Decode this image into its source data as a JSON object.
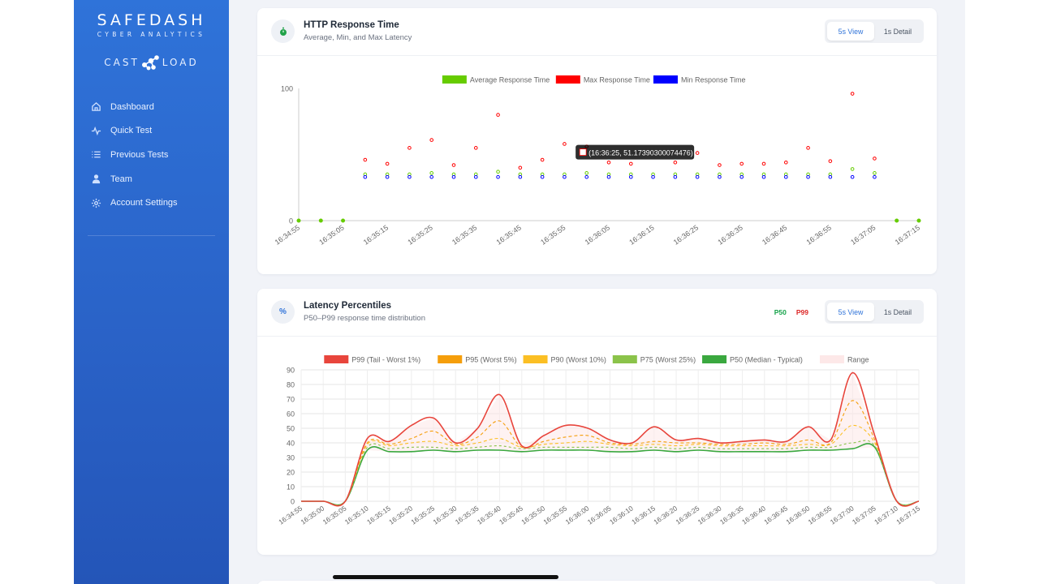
{
  "brand": {
    "name": "SAFEDASH",
    "tagline": "CYBER ANALYTICS",
    "partner_left": "CAST",
    "partner_right": "LOAD"
  },
  "nav": [
    {
      "label": "Dashboard",
      "icon": "home-icon"
    },
    {
      "label": "Quick Test",
      "icon": "activity-icon"
    },
    {
      "label": "Previous Tests",
      "icon": "list-icon"
    },
    {
      "label": "Team",
      "icon": "user-icon"
    },
    {
      "label": "Account Settings",
      "icon": "gear-icon"
    }
  ],
  "colors": {
    "accent": "#2f73d9",
    "avg": "#66cc00",
    "max": "#ff0000",
    "min": "#0000ff"
  },
  "response_card": {
    "title": "HTTP Response Time",
    "subtitle": "Average, Min, and Max Latency",
    "icon": "stopwatch-icon",
    "toggle": [
      "5s View",
      "1s Detail"
    ],
    "active_toggle": "5s View"
  },
  "percentile_card": {
    "title": "Latency Percentiles",
    "subtitle": "P50–P99 response time distribution",
    "icon": "percent-icon",
    "badges": [
      {
        "label": "P50",
        "color": "#16a34a"
      },
      {
        "label": "P99",
        "color": "#dc2626"
      }
    ],
    "toggle": [
      "5s View",
      "1s Detail"
    ],
    "active_toggle": "5s View"
  },
  "chart_data": [
    {
      "type": "scatter",
      "ylim": [
        0,
        100
      ],
      "ytick_labels": [
        "0",
        "100"
      ],
      "grid": false,
      "legend_position": "top-center",
      "x_tick_labels": [
        "16:34:55",
        "16:35:05",
        "16:35:15",
        "16:35:25",
        "16:35:35",
        "16:35:45",
        "16:35:55",
        "16:36:05",
        "16:36:15",
        "16:36:25",
        "16:36:35",
        "16:36:45",
        "16:36:55",
        "16:37:05",
        "16:37:15"
      ],
      "x": [
        "16:34:55",
        "16:35:00",
        "16:35:05",
        "16:35:10",
        "16:35:15",
        "16:35:20",
        "16:35:25",
        "16:35:30",
        "16:35:35",
        "16:35:40",
        "16:35:45",
        "16:35:50",
        "16:35:55",
        "16:36:00",
        "16:36:05",
        "16:36:10",
        "16:36:15",
        "16:36:20",
        "16:36:25",
        "16:36:30",
        "16:36:35",
        "16:36:40",
        "16:36:45",
        "16:36:50",
        "16:36:55",
        "16:37:00",
        "16:37:05",
        "16:37:10",
        "16:37:15"
      ],
      "series": [
        {
          "name": "Average Response Time",
          "color": "#66cc00",
          "values": [
            0,
            0,
            0,
            35,
            35,
            35,
            36,
            35,
            35,
            37,
            35,
            35,
            35,
            36,
            35,
            35,
            35,
            35,
            35,
            35,
            35,
            35,
            35,
            35,
            35,
            39,
            36,
            0,
            0
          ]
        },
        {
          "name": "Max Response Time",
          "color": "#ff0000",
          "values": [
            null,
            null,
            null,
            46,
            43,
            55,
            61,
            42,
            55,
            80,
            40,
            46,
            58,
            56,
            44,
            43,
            null,
            44,
            51.17,
            42,
            43,
            43,
            44,
            55,
            45,
            96,
            47,
            null,
            null
          ]
        },
        {
          "name": "Min Response Time",
          "color": "#0000ff",
          "values": [
            null,
            null,
            null,
            33,
            33,
            33,
            33,
            33,
            33,
            33,
            33,
            33,
            33,
            33,
            33,
            33,
            33,
            33,
            33,
            33,
            33,
            33,
            33,
            33,
            33,
            33,
            33,
            null,
            null
          ]
        }
      ],
      "tooltip": {
        "text": "(16:36:25, 51.17390300074476)"
      }
    },
    {
      "type": "line",
      "ylim": [
        0,
        90
      ],
      "ytick_labels": [
        "0",
        "10",
        "20",
        "30",
        "40",
        "50",
        "60",
        "70",
        "80",
        "90"
      ],
      "grid": true,
      "legend_position": "top-center",
      "x": [
        "16:34:55",
        "16:35:00",
        "16:35:05",
        "16:35:10",
        "16:35:15",
        "16:35:20",
        "16:35:25",
        "16:35:30",
        "16:35:35",
        "16:35:40",
        "16:35:45",
        "16:35:50",
        "16:35:55",
        "16:36:00",
        "16:36:05",
        "16:36:10",
        "16:36:15",
        "16:36:20",
        "16:36:25",
        "16:36:30",
        "16:36:35",
        "16:36:40",
        "16:36:45",
        "16:36:50",
        "16:36:55",
        "16:37:00",
        "16:37:05",
        "16:37:10",
        "16:37:15"
      ],
      "series": [
        {
          "name": "P99 (Tail - Worst 1%)",
          "color": "#e8453c",
          "values": [
            0,
            0,
            0,
            43,
            41,
            52,
            57,
            40,
            50,
            73,
            38,
            45,
            52,
            50,
            42,
            40,
            51,
            42,
            43,
            40,
            41,
            42,
            41,
            51,
            42,
            88,
            45,
            0,
            0
          ]
        },
        {
          "name": "P95 (Worst 5%)",
          "color": "#f59e0b",
          "values": [
            0,
            0,
            0,
            40,
            39,
            43,
            48,
            39,
            44,
            55,
            37,
            41,
            44,
            45,
            40,
            39,
            41,
            40,
            40,
            39,
            39,
            40,
            39,
            42,
            40,
            69,
            42,
            0,
            0
          ]
        },
        {
          "name": "P90 (Worst 10%)",
          "color": "#fbbf24",
          "values": [
            0,
            0,
            0,
            39,
            38,
            40,
            41,
            38,
            40,
            43,
            37,
            39,
            40,
            41,
            39,
            38,
            39,
            38,
            39,
            38,
            38,
            38,
            38,
            39,
            39,
            52,
            40,
            0,
            0
          ]
        },
        {
          "name": "P75 (Worst 25%)",
          "color": "#8bc34a",
          "values": [
            0,
            0,
            0,
            37,
            36,
            37,
            37,
            36,
            37,
            38,
            36,
            37,
            37,
            37,
            37,
            36,
            37,
            36,
            37,
            36,
            36,
            36,
            36,
            37,
            37,
            40,
            38,
            0,
            0
          ]
        },
        {
          "name": "P50 (Median - Typical)",
          "color": "#3aa83f",
          "values": [
            0,
            0,
            0,
            35,
            34,
            34,
            35,
            34,
            35,
            35,
            34,
            35,
            35,
            35,
            34,
            34,
            35,
            34,
            35,
            34,
            34,
            34,
            34,
            35,
            35,
            36,
            37,
            0,
            0
          ]
        }
      ],
      "range_legend": {
        "name": "Range",
        "color": "#fde8e8"
      }
    }
  ]
}
